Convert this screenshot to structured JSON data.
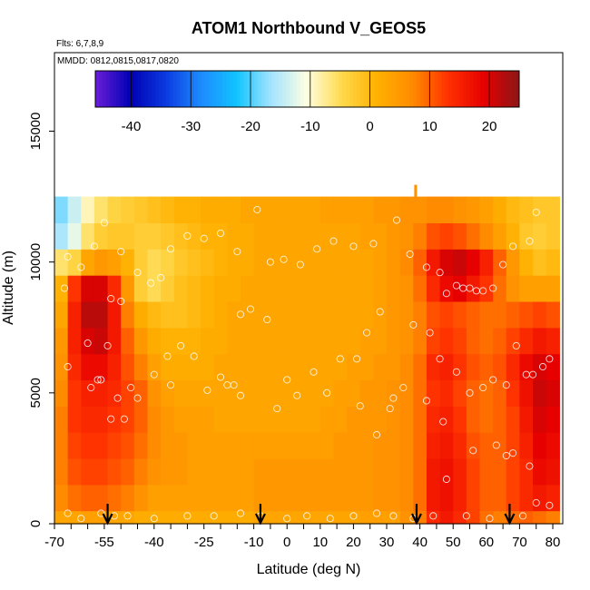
{
  "chart_data": {
    "type": "heatmap",
    "title": "ATOM1 Northbound V_GEOS5",
    "flights_label": "Flts: 6,7,8,9",
    "dates_label": "MMDD: 0812,0815,0817,0820",
    "xlabel": "Latitude (deg N)",
    "ylabel": "Altitude (m)",
    "xlim": [
      -70,
      83
    ],
    "ylim": [
      0,
      18000
    ],
    "x_ticks": [
      -70,
      -55,
      -40,
      -25,
      -10,
      0,
      10,
      20,
      30,
      40,
      50,
      60,
      70,
      80
    ],
    "x_tick_labels": [
      "-70",
      "-55",
      "-40",
      "-25",
      "-10",
      "0",
      "10",
      "20",
      "30",
      "40",
      "50",
      "60",
      "70",
      "80"
    ],
    "y_ticks": [
      0,
      5000,
      10000,
      15000
    ],
    "y_tick_labels": [
      "0",
      "5000",
      "10000",
      "15000"
    ],
    "colorbar": {
      "range": [
        -46,
        25
      ],
      "ticks": [
        -40,
        -30,
        -20,
        -10,
        0,
        10,
        20
      ],
      "tick_labels": [
        "-40",
        "-30",
        "-20",
        "-10",
        "0",
        "10",
        "20"
      ],
      "colors": [
        "#6a1ed8",
        "#0000b4",
        "#0b3be0",
        "#1e8bff",
        "#10c4ff",
        "#a6e4ff",
        "#ffffe0",
        "#ffd84a",
        "#ffb000",
        "#ff8a00",
        "#ff3000",
        "#e60000",
        "#8c1616"
      ]
    },
    "grid_lat": [
      -68,
      -64,
      -60,
      -56,
      -52,
      -48,
      -44,
      -40,
      -36,
      -32,
      -28,
      -24,
      -20,
      -16,
      -12,
      -8,
      -4,
      0,
      4,
      8,
      12,
      16,
      20,
      24,
      28,
      32,
      36,
      40,
      44,
      48,
      52,
      56,
      60,
      64,
      68,
      72,
      76,
      80
    ],
    "grid_alt": [
      0,
      1000,
      2000,
      3000,
      4000,
      5000,
      6000,
      7000,
      8000,
      9000,
      10000,
      11000,
      12000
    ],
    "values": [
      [
        3,
        3,
        4,
        4,
        3,
        3,
        2,
        2,
        2,
        2,
        2,
        2,
        2,
        2,
        2,
        3,
        3,
        3,
        3,
        3,
        3,
        3,
        3,
        4,
        4,
        4,
        6,
        8,
        14,
        16,
        14,
        12,
        9,
        8,
        9,
        10,
        9,
        8
      ],
      [
        7,
        9,
        10,
        10,
        9,
        8,
        6,
        4,
        4,
        4,
        4,
        4,
        4,
        4,
        4,
        5,
        5,
        5,
        5,
        5,
        5,
        5,
        5,
        5,
        6,
        6,
        7,
        9,
        16,
        17,
        15,
        12,
        10,
        10,
        12,
        14,
        16,
        15
      ],
      [
        8,
        11,
        12,
        12,
        11,
        10,
        8,
        6,
        5,
        5,
        4,
        4,
        4,
        4,
        4,
        5,
        5,
        5,
        5,
        5,
        5,
        5,
        5,
        5,
        6,
        6,
        7,
        9,
        16,
        17,
        15,
        12,
        10,
        10,
        12,
        14,
        18,
        17
      ],
      [
        8,
        12,
        13,
        13,
        12,
        11,
        9,
        7,
        5,
        5,
        4,
        4,
        4,
        4,
        4,
        4,
        4,
        4,
        4,
        4,
        4,
        5,
        5,
        5,
        6,
        6,
        7,
        9,
        15,
        16,
        14,
        11,
        10,
        10,
        12,
        15,
        19,
        18
      ],
      [
        8,
        13,
        14,
        14,
        13,
        12,
        10,
        7,
        5,
        4,
        4,
        4,
        3,
        3,
        3,
        3,
        3,
        3,
        3,
        3,
        4,
        4,
        5,
        5,
        5,
        6,
        7,
        9,
        14,
        15,
        13,
        10,
        9,
        10,
        12,
        16,
        20,
        19
      ],
      [
        7,
        13,
        15,
        15,
        14,
        12,
        10,
        6,
        4,
        3,
        3,
        3,
        3,
        3,
        3,
        3,
        3,
        3,
        3,
        3,
        3,
        4,
        4,
        5,
        5,
        6,
        7,
        9,
        13,
        14,
        12,
        10,
        9,
        10,
        13,
        17,
        21,
        20
      ],
      [
        6,
        14,
        18,
        18,
        15,
        11,
        8,
        4,
        2,
        2,
        2,
        2,
        3,
        3,
        3,
        3,
        3,
        3,
        3,
        3,
        3,
        3,
        4,
        4,
        5,
        5,
        7,
        9,
        14,
        15,
        13,
        11,
        10,
        11,
        14,
        18,
        20,
        19
      ],
      [
        5,
        15,
        20,
        21,
        16,
        10,
        5,
        2,
        1,
        1,
        1,
        2,
        2,
        3,
        3,
        3,
        3,
        3,
        3,
        3,
        3,
        3,
        3,
        4,
        4,
        5,
        6,
        8,
        12,
        13,
        12,
        10,
        9,
        10,
        12,
        14,
        16,
        15
      ],
      [
        3,
        15,
        22,
        22,
        16,
        8,
        2,
        0,
        -1,
        -1,
        0,
        1,
        2,
        3,
        3,
        3,
        3,
        3,
        3,
        3,
        3,
        3,
        3,
        3,
        4,
        5,
        6,
        8,
        11,
        12,
        11,
        10,
        9,
        9,
        10,
        11,
        12,
        11
      ],
      [
        1,
        13,
        20,
        20,
        14,
        5,
        -3,
        -5,
        -3,
        -1,
        0,
        1,
        2,
        2,
        3,
        3,
        3,
        3,
        3,
        3,
        3,
        3,
        3,
        3,
        4,
        5,
        6,
        9,
        14,
        18,
        19,
        16,
        13,
        9,
        6,
        4,
        4,
        4
      ],
      [
        -6,
        -4,
        3,
        5,
        4,
        1,
        -3,
        -5,
        -4,
        -2,
        -1,
        0,
        1,
        2,
        2,
        3,
        3,
        3,
        3,
        3,
        3,
        3,
        3,
        3,
        4,
        5,
        7,
        10,
        16,
        20,
        21,
        19,
        15,
        10,
        5,
        1,
        -1,
        0
      ],
      [
        -16,
        -12,
        -6,
        -3,
        -2,
        -2,
        -3,
        -3,
        -2,
        -1,
        0,
        1,
        1,
        2,
        2,
        3,
        3,
        3,
        3,
        3,
        3,
        3,
        3,
        4,
        4,
        5,
        6,
        8,
        11,
        12,
        11,
        9,
        7,
        4,
        1,
        -2,
        -3,
        -2
      ],
      [
        -18,
        -14,
        -9,
        -6,
        -4,
        -3,
        -2,
        -1,
        0,
        1,
        1,
        2,
        2,
        2,
        3,
        3,
        3,
        3,
        3,
        3,
        4,
        4,
        4,
        4,
        5,
        5,
        6,
        6,
        7,
        7,
        6,
        5,
        4,
        2,
        0,
        -1,
        -2,
        -2
      ]
    ],
    "arrows_lat": [
      -54,
      -8,
      39,
      67
    ],
    "obs_points": [
      [
        -66,
        10200
      ],
      [
        -67,
        9000
      ],
      [
        -62,
        9800
      ],
      [
        -58,
        10600
      ],
      [
        -55,
        11500
      ],
      [
        -50,
        10400
      ],
      [
        -45,
        9600
      ],
      [
        -41,
        9200
      ],
      [
        -38,
        9400
      ],
      [
        -35,
        10500
      ],
      [
        -30,
        11000
      ],
      [
        -25,
        10900
      ],
      [
        -20,
        11100
      ],
      [
        -15,
        10400
      ],
      [
        -9,
        12000
      ],
      [
        -5,
        10000
      ],
      [
        -1,
        10100
      ],
      [
        4,
        9900
      ],
      [
        9,
        10500
      ],
      [
        14,
        10800
      ],
      [
        20,
        10600
      ],
      [
        26,
        10700
      ],
      [
        33,
        11600
      ],
      [
        37,
        10300
      ],
      [
        42,
        9800
      ],
      [
        46,
        9600
      ],
      [
        48,
        8800
      ],
      [
        51,
        9100
      ],
      [
        53,
        9000
      ],
      [
        55,
        9000
      ],
      [
        57,
        8900
      ],
      [
        59,
        8900
      ],
      [
        62,
        9000
      ],
      [
        65,
        9900
      ],
      [
        68,
        10600
      ],
      [
        73,
        10800
      ],
      [
        75,
        11900
      ],
      [
        -66,
        6000
      ],
      [
        -60,
        6900
      ],
      [
        -57,
        5500
      ],
      [
        -54,
        6800
      ],
      [
        -53,
        8600
      ],
      [
        -50,
        8500
      ],
      [
        -47,
        5200
      ],
      [
        -45,
        4800
      ],
      [
        -40,
        5700
      ],
      [
        -36,
        6400
      ],
      [
        -32,
        6800
      ],
      [
        -28,
        6400
      ],
      [
        -24,
        5100
      ],
      [
        -20,
        5600
      ],
      [
        -16,
        5300
      ],
      [
        -14,
        8000
      ],
      [
        -11,
        8200
      ],
      [
        -6,
        7800
      ],
      [
        0,
        5500
      ],
      [
        3,
        4900
      ],
      [
        8,
        5800
      ],
      [
        12,
        5000
      ],
      [
        16,
        6300
      ],
      [
        21,
        6300
      ],
      [
        24,
        7300
      ],
      [
        28,
        8100
      ],
      [
        32,
        4800
      ],
      [
        35,
        5200
      ],
      [
        38,
        7600
      ],
      [
        43,
        7300
      ],
      [
        46,
        6300
      ],
      [
        51,
        5800
      ],
      [
        55,
        5000
      ],
      [
        59,
        5200
      ],
      [
        62,
        5500
      ],
      [
        66,
        5300
      ],
      [
        69,
        6800
      ],
      [
        72,
        5700
      ],
      [
        74,
        5700
      ],
      [
        77,
        6000
      ],
      [
        79,
        6300
      ],
      [
        -59,
        5200
      ],
      [
        -56,
        5500
      ],
      [
        -53,
        4000
      ],
      [
        -51,
        4800
      ],
      [
        -49,
        4000
      ],
      [
        -35,
        5300
      ],
      [
        -18,
        5300
      ],
      [
        -14,
        4900
      ],
      [
        -3,
        4400
      ],
      [
        22,
        4500
      ],
      [
        27,
        3400
      ],
      [
        31,
        4400
      ],
      [
        42,
        4700
      ],
      [
        47,
        3900
      ],
      [
        56,
        2800
      ],
      [
        63,
        3000
      ],
      [
        68,
        2700
      ],
      [
        73,
        2200
      ],
      [
        -66,
        400
      ],
      [
        -62,
        200
      ],
      [
        -56,
        400
      ],
      [
        -52,
        300
      ],
      [
        -48,
        300
      ],
      [
        -40,
        200
      ],
      [
        -30,
        300
      ],
      [
        -22,
        300
      ],
      [
        -14,
        400
      ],
      [
        -8,
        300
      ],
      [
        0,
        200
      ],
      [
        6,
        300
      ],
      [
        13,
        200
      ],
      [
        20,
        300
      ],
      [
        27,
        400
      ],
      [
        32,
        300
      ],
      [
        38,
        200
      ],
      [
        44,
        300
      ],
      [
        48,
        1700
      ],
      [
        54,
        300
      ],
      [
        61,
        200
      ],
      [
        66,
        2600
      ],
      [
        71,
        300
      ],
      [
        75,
        800
      ],
      [
        79,
        700
      ]
    ]
  }
}
